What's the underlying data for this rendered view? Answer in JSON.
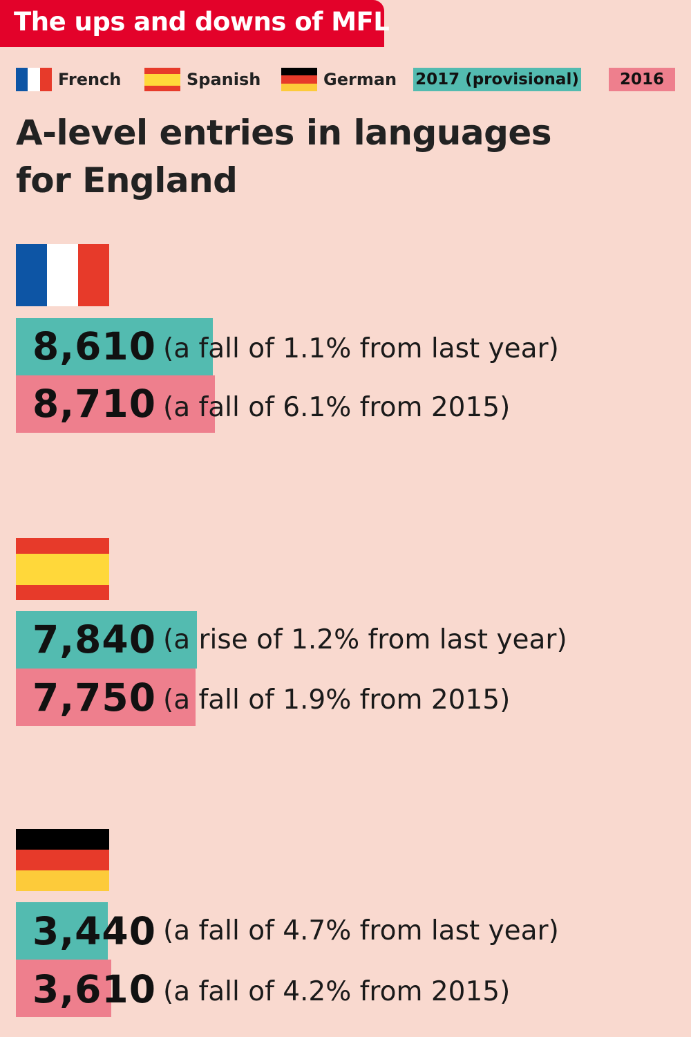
{
  "header": {
    "text": "The ups and downs of MFL"
  },
  "legend": {
    "french_label": "French",
    "spanish_label": "Spanish",
    "german_label": "German",
    "year_2017_label": "2017 (provisional)",
    "year_2016_label": "2016"
  },
  "title": "A-level entries in languages for England",
  "colors": {
    "background": "#f9d9cf",
    "header": "#e3022a",
    "bar_2017": "#53bbb0",
    "bar_2016": "#ee7f8d"
  },
  "icons": [
    "french-flag-icon",
    "spanish-flag-icon",
    "german-flag-icon"
  ],
  "chart_data": {
    "type": "bar",
    "orientation": "horizontal",
    "title": "A-level entries in languages for England",
    "categories": [
      "French",
      "Spanish",
      "German"
    ],
    "series": [
      {
        "name": "2017 (provisional)",
        "values": [
          8610,
          7840,
          3440
        ]
      },
      {
        "name": "2016",
        "values": [
          8710,
          7750,
          3610
        ]
      }
    ],
    "labels": {
      "2017": [
        "8,610",
        "7,840",
        "3,440"
      ],
      "2016": [
        "8,710",
        "7,750",
        "3,610"
      ]
    },
    "annotations": {
      "2017": [
        "(a fall of 1.1% from last year)",
        "(a rise of 1.2% from last year)",
        "(a fall of 4.7% from last year)"
      ],
      "2016": [
        "(a fall of 6.1% from 2015)",
        "(a fall of 1.9% from 2015)",
        "(a fall of 4.2% from 2015)"
      ]
    },
    "xlim": [
      0,
      10000
    ],
    "grid": false,
    "legend": "top"
  }
}
